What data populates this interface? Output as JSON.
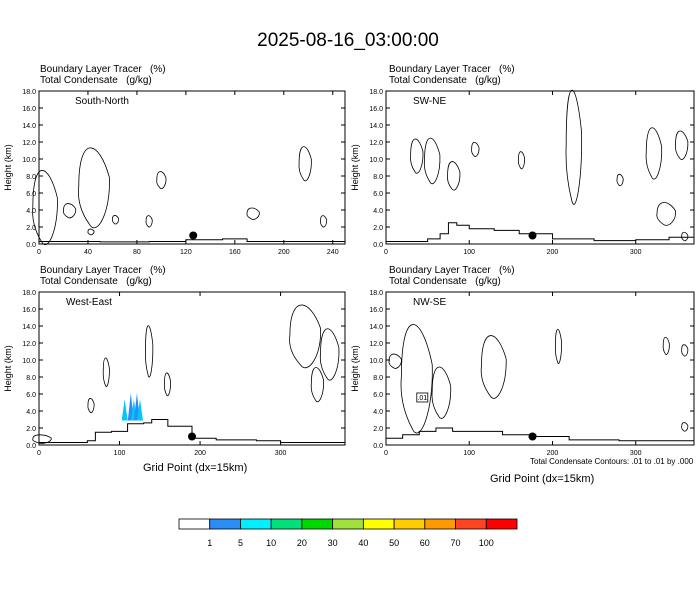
{
  "title": "2025-08-16_03:00:00",
  "panel_header": {
    "line1": "Boundary Layer Tracer   (%)",
    "line2": "Total Condensate   (g/kg)"
  },
  "y_axis_label": "Height (km)",
  "x_axis_label": "Grid Point (dx=15km)",
  "footnote": "Total Condensate Contours: .01 to .01 by .000",
  "contour_box_label": ".01",
  "colorbar": {
    "labels": [
      "1",
      "5",
      "10",
      "20",
      "30",
      "40",
      "50",
      "60",
      "70",
      "100"
    ],
    "colors": [
      "#ffffff",
      "#2a8cf5",
      "#00f0ff",
      "#00e07a",
      "#00d800",
      "#9ee23a",
      "#ffff00",
      "#ffcc00",
      "#ff9900",
      "#ff4422",
      "#ff0000"
    ]
  },
  "chart_data": [
    {
      "type": "contour",
      "name": "South-North",
      "ylim": [
        0,
        18
      ],
      "xlim": [
        0,
        250
      ],
      "xticks": [
        0,
        40,
        80,
        120,
        160,
        200,
        240
      ],
      "yticks": [
        "0.0",
        "2.0",
        "4.0",
        "6.0",
        "8.0",
        "10.0",
        "12.0",
        "14.0",
        "16.0",
        "18.0"
      ],
      "marker": {
        "x": 126,
        "y": 1.0
      },
      "terrain": [
        [
          0,
          0.3
        ],
        [
          30,
          0.3
        ],
        [
          50,
          0.25
        ],
        [
          90,
          0.3
        ],
        [
          120,
          0.5
        ],
        [
          150,
          0.6
        ],
        [
          170,
          0.3
        ],
        [
          250,
          0.3
        ]
      ]
    },
    {
      "type": "contour",
      "name": "SW-NE",
      "ylim": [
        0,
        18
      ],
      "xlim": [
        0,
        370
      ],
      "xticks": [
        0,
        100,
        200,
        300
      ],
      "yticks": [
        "0.0",
        "2.0",
        "4.0",
        "6.0",
        "8.0",
        "10.0",
        "12.0",
        "14.0",
        "16.0",
        "18.0"
      ],
      "marker": {
        "x": 176,
        "y": 1.0
      },
      "terrain": [
        [
          0,
          0.3
        ],
        [
          30,
          0.3
        ],
        [
          50,
          0.6
        ],
        [
          65,
          1.2
        ],
        [
          75,
          2.5
        ],
        [
          85,
          2.2
        ],
        [
          100,
          1.8
        ],
        [
          130,
          1.6
        ],
        [
          160,
          1.2
        ],
        [
          200,
          0.6
        ],
        [
          250,
          0.4
        ],
        [
          300,
          0.5
        ],
        [
          340,
          0.8
        ],
        [
          370,
          0.6
        ]
      ]
    },
    {
      "type": "contour",
      "name": "West-East",
      "ylim": [
        0,
        18
      ],
      "xlim": [
        0,
        380
      ],
      "xticks": [
        0,
        100,
        200,
        300
      ],
      "yticks": [
        "0.0",
        "2.0",
        "4.0",
        "6.0",
        "8.0",
        "10.0",
        "12.0",
        "14.0",
        "16.0",
        "18.0"
      ],
      "marker": {
        "x": 190,
        "y": 1.0
      },
      "terrain": [
        [
          0,
          0.3
        ],
        [
          60,
          0.5
        ],
        [
          70,
          1.5
        ],
        [
          90,
          1.6
        ],
        [
          110,
          2.5
        ],
        [
          130,
          2.6
        ],
        [
          140,
          3.0
        ],
        [
          160,
          2.2
        ],
        [
          190,
          0.8
        ],
        [
          220,
          0.6
        ],
        [
          270,
          0.5
        ],
        [
          300,
          0.3
        ],
        [
          380,
          0.3
        ]
      ]
    },
    {
      "type": "contour",
      "name": "NW-SE",
      "ylim": [
        0,
        18
      ],
      "xlim": [
        0,
        370
      ],
      "xticks": [
        0,
        100,
        200,
        300
      ],
      "yticks": [
        "0.0",
        "2.0",
        "4.0",
        "6.0",
        "8.0",
        "10.0",
        "12.0",
        "14.0",
        "16.0",
        "18.0"
      ],
      "marker": {
        "x": 176,
        "y": 1.0
      },
      "terrain": [
        [
          0,
          0.8
        ],
        [
          20,
          1.2
        ],
        [
          40,
          1.6
        ],
        [
          60,
          2.0
        ],
        [
          80,
          1.6
        ],
        [
          100,
          1.6
        ],
        [
          140,
          1.2
        ],
        [
          180,
          1.0
        ],
        [
          220,
          0.6
        ],
        [
          280,
          0.5
        ],
        [
          370,
          0.5
        ]
      ]
    }
  ]
}
